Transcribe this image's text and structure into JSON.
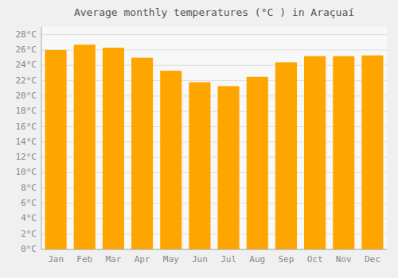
{
  "chart_data": {
    "type": "bar",
    "title": "Average monthly temperatures (°C ) in Araçuaí",
    "categories": [
      "Jan",
      "Feb",
      "Mar",
      "Apr",
      "May",
      "Jun",
      "Jul",
      "Aug",
      "Sep",
      "Oct",
      "Nov",
      "Dec"
    ],
    "values": [
      26.0,
      26.7,
      26.3,
      25.0,
      23.3,
      21.8,
      21.3,
      22.5,
      24.4,
      25.2,
      25.2,
      25.3
    ],
    "color": "#FFA500",
    "ylim": [
      0,
      29
    ],
    "yticks": [
      {
        "value": 0,
        "label": "0°C"
      },
      {
        "value": 2,
        "label": "2°C"
      },
      {
        "value": 4,
        "label": "4°C"
      },
      {
        "value": 6,
        "label": "6°C"
      },
      {
        "value": 8,
        "label": "8°C"
      },
      {
        "value": 10,
        "label": "10°C"
      },
      {
        "value": 12,
        "label": "12°C"
      },
      {
        "value": 14,
        "label": "14°C"
      },
      {
        "value": 16,
        "label": "16°C"
      },
      {
        "value": 18,
        "label": "18°C"
      },
      {
        "value": 20,
        "label": "20°C"
      },
      {
        "value": 22,
        "label": "22°C"
      },
      {
        "value": 24,
        "label": "24°C"
      },
      {
        "value": 26,
        "label": "26°C"
      },
      {
        "value": 28,
        "label": "28°C"
      }
    ],
    "grid": true
  }
}
